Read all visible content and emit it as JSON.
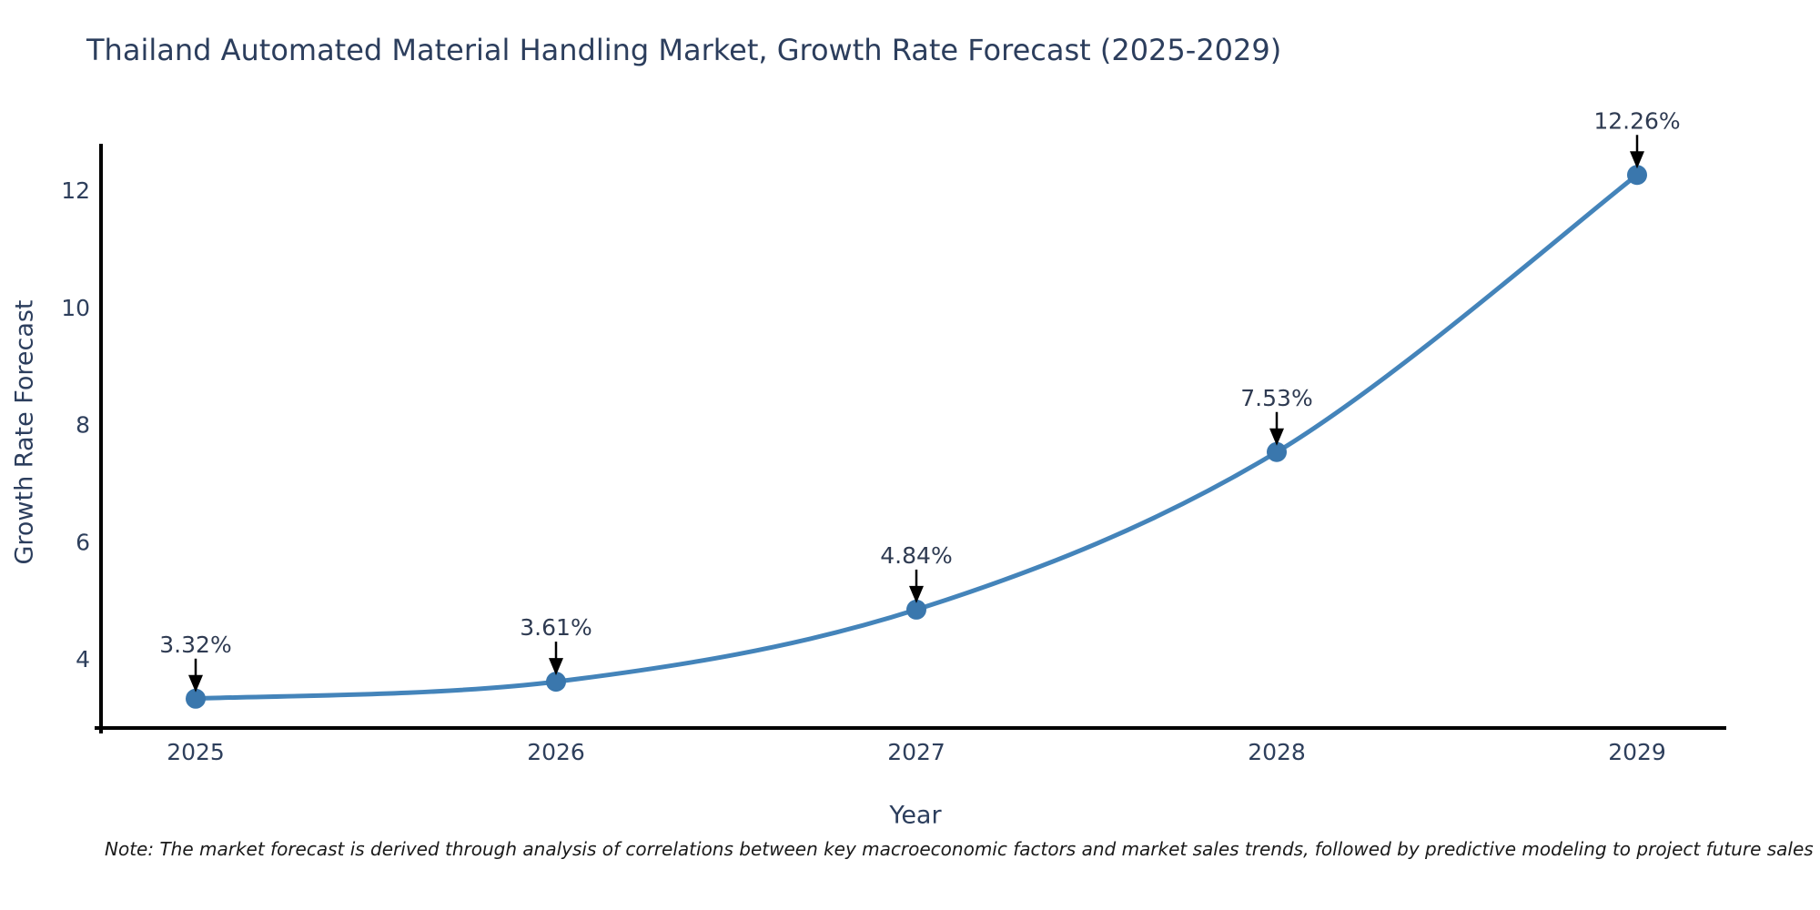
{
  "note": "Note: The market forecast is derived through analysis of correlations between key macroeconomic factors and market sales trends, followed by predictive modeling to project future sales",
  "chart_data": {
    "type": "line",
    "title": "Thailand Automated Material Handling Market, Growth Rate Forecast (2025-2029)",
    "xlabel": "Year",
    "ylabel": "Growth Rate Forecast",
    "x": [
      2025,
      2026,
      2027,
      2028,
      2029
    ],
    "series": [
      {
        "name": "Growth Rate Forecast",
        "values": [
          3.32,
          3.61,
          4.84,
          7.53,
          12.26
        ]
      }
    ],
    "point_labels": [
      "3.32%",
      "3.61%",
      "4.84%",
      "7.53%",
      "12.26%"
    ],
    "yticks": [
      4,
      6,
      8,
      10,
      12
    ],
    "ylim": [
      3.05,
      12.95
    ],
    "line_shape": "spline",
    "grid": false,
    "legend": "none",
    "colors": {
      "line": "#4484ba",
      "marker": "#3a77ad",
      "axis": "#000000",
      "tick_text": "#2e3f5c",
      "annotation_text": "#2f3b52",
      "arrow": "#000000",
      "title_text": "#2c3e5d"
    }
  }
}
